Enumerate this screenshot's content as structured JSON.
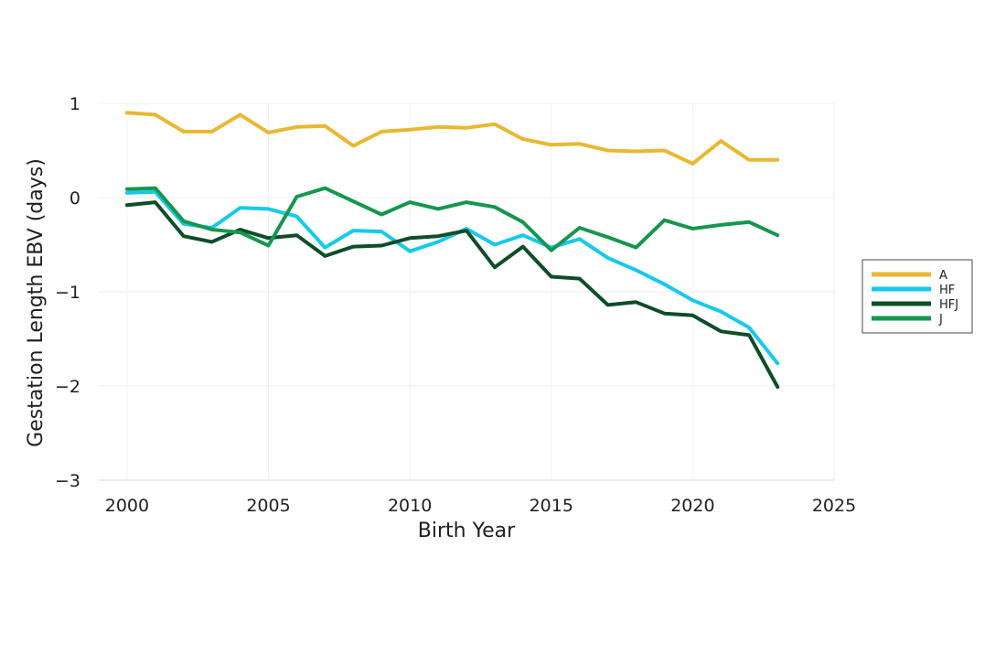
{
  "chart_data": {
    "type": "line",
    "title": "",
    "xlabel": "Birth Year",
    "ylabel": "Gestation Length EBV (days)",
    "xlim": [
      1999,
      2025
    ],
    "ylim": [
      -3,
      1
    ],
    "xticks": [
      2000,
      2005,
      2010,
      2015,
      2020,
      2025
    ],
    "yticks": [
      1,
      0,
      -1,
      -2,
      -3
    ],
    "ytick_labels": [
      "1",
      "0",
      "−1",
      "−2",
      "−3"
    ],
    "grid": true,
    "legend_position": "right",
    "x": [
      2000,
      2001,
      2002,
      2003,
      2004,
      2005,
      2006,
      2007,
      2008,
      2009,
      2010,
      2011,
      2012,
      2013,
      2014,
      2015,
      2016,
      2017,
      2018,
      2019,
      2020,
      2021,
      2022,
      2023
    ],
    "series": [
      {
        "name": "A",
        "color": "#E8B832",
        "values": [
          0.9,
          0.88,
          0.7,
          0.7,
          0.88,
          0.69,
          0.75,
          0.76,
          0.55,
          0.7,
          0.72,
          0.75,
          0.74,
          0.78,
          0.62,
          0.56,
          0.57,
          0.5,
          0.49,
          0.5,
          0.36,
          0.6,
          0.4,
          0.4
        ]
      },
      {
        "name": "HF",
        "color": "#17C9EB",
        "values": [
          0.05,
          0.06,
          -0.28,
          -0.32,
          -0.11,
          -0.12,
          -0.2,
          -0.53,
          -0.35,
          -0.36,
          -0.57,
          -0.47,
          -0.33,
          -0.5,
          -0.4,
          -0.53,
          -0.44,
          -0.64,
          -0.77,
          -0.92,
          -1.09,
          -1.21,
          -1.38,
          -1.76
        ]
      },
      {
        "name": "HFJ",
        "color": "#0E4D28",
        "values": [
          -0.08,
          -0.05,
          -0.41,
          -0.47,
          -0.34,
          -0.43,
          -0.4,
          -0.62,
          -0.52,
          -0.51,
          -0.43,
          -0.41,
          -0.35,
          -0.74,
          -0.52,
          -0.84,
          -0.86,
          -1.14,
          -1.11,
          -1.23,
          -1.25,
          -1.42,
          -1.46,
          -2.01
        ]
      },
      {
        "name": "J",
        "color": "#16964F",
        "values": [
          0.09,
          0.1,
          -0.25,
          -0.34,
          -0.37,
          -0.51,
          0.01,
          0.1,
          -0.04,
          -0.18,
          -0.05,
          -0.12,
          -0.05,
          -0.1,
          -0.26,
          -0.56,
          -0.32,
          -0.42,
          -0.53,
          -0.24,
          -0.33,
          -0.29,
          -0.26,
          -0.4
        ]
      }
    ]
  }
}
